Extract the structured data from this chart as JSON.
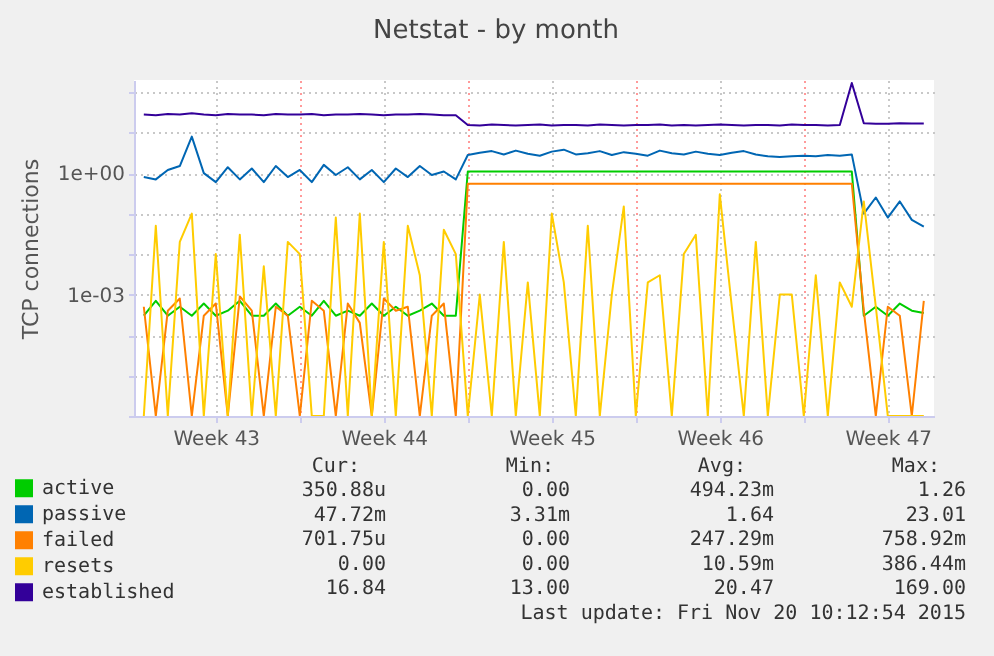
{
  "chart_data": {
    "type": "line",
    "title": "Netstat - by month",
    "ylabel": "TCP connections",
    "x": [
      "2015-10-18T12:00",
      "2015-10-19T00:00",
      "2015-10-19T12:00",
      "2015-10-20T00:00",
      "2015-10-20T12:00",
      "2015-10-21T00:00",
      "2015-10-21T12:00",
      "2015-10-22T00:00",
      "2015-10-22T12:00",
      "2015-10-23T00:00",
      "2015-10-23T12:00",
      "2015-10-24T00:00",
      "2015-10-24T12:00",
      "2015-10-25T00:00",
      "2015-10-25T12:00",
      "2015-10-26T00:00",
      "2015-10-26T12:00",
      "2015-10-27T00:00",
      "2015-10-27T12:00",
      "2015-10-28T00:00",
      "2015-10-28T12:00",
      "2015-10-29T00:00",
      "2015-10-29T12:00",
      "2015-10-30T00:00",
      "2015-10-30T12:00",
      "2015-10-31T00:00",
      "2015-10-31T12:00",
      "2015-11-01T00:00",
      "2015-11-01T12:00",
      "2015-11-02T00:00",
      "2015-11-02T12:00",
      "2015-11-03T00:00",
      "2015-11-03T12:00",
      "2015-11-04T00:00",
      "2015-11-04T12:00",
      "2015-11-05T00:00",
      "2015-11-05T12:00",
      "2015-11-06T00:00",
      "2015-11-06T12:00",
      "2015-11-07T00:00",
      "2015-11-07T12:00",
      "2015-11-08T00:00",
      "2015-11-08T12:00",
      "2015-11-09T00:00",
      "2015-11-09T12:00",
      "2015-11-10T00:00",
      "2015-11-10T12:00",
      "2015-11-11T00:00",
      "2015-11-11T12:00",
      "2015-11-12T00:00",
      "2015-11-12T12:00",
      "2015-11-13T00:00",
      "2015-11-13T12:00",
      "2015-11-14T00:00",
      "2015-11-14T12:00",
      "2015-11-15T00:00",
      "2015-11-15T12:00",
      "2015-11-16T00:00",
      "2015-11-16T12:00",
      "2015-11-17T00:00",
      "2015-11-17T12:00",
      "2015-11-18T00:00",
      "2015-11-18T12:00",
      "2015-11-19T00:00",
      "2015-11-19T12:00",
      "2015-11-20T00:00"
    ],
    "xlim": [
      "2015-10-18T02:12",
      "2015-11-20T10:12"
    ],
    "xticks": [
      {
        "value": "2015-10-21T12:00",
        "label": "Week 43"
      },
      {
        "value": "2015-10-25T00:00",
        "label": null
      },
      {
        "value": "2015-10-28T12:00",
        "label": "Week 44"
      },
      {
        "value": "2015-11-01T00:00",
        "label": null
      },
      {
        "value": "2015-11-04T12:00",
        "label": "Week 45"
      },
      {
        "value": "2015-11-08T00:00",
        "label": null
      },
      {
        "value": "2015-11-11T12:00",
        "label": "Week 46"
      },
      {
        "value": "2015-11-15T00:00",
        "label": null
      },
      {
        "value": "2015-11-18T12:00",
        "label": "Week 47"
      }
    ],
    "ylim": [
      1e-06,
      200
    ],
    "yticks": [
      {
        "value": 1e-06,
        "label": null
      },
      {
        "value": 1e-05,
        "label": null
      },
      {
        "value": 0.0001,
        "label": null
      },
      {
        "value": 0.001,
        "label": "1e-03"
      },
      {
        "value": 0.01,
        "label": null
      },
      {
        "value": 0.1,
        "label": null
      },
      {
        "value": 1,
        "label": "1e+00"
      },
      {
        "value": 10,
        "label": null
      },
      {
        "value": 100,
        "label": null
      }
    ],
    "log": "y",
    "grid": true,
    "legend": "bottom",
    "series": [
      {
        "name": "active",
        "color": "#00cc00",
        "values": [
          0.0003,
          0.0007,
          0.0003,
          0.0005,
          0.0003,
          0.0006,
          0.0003,
          0.0004,
          0.0007,
          0.0003,
          0.0003,
          0.0006,
          0.0003,
          0.0005,
          0.0003,
          0.0007,
          0.0003,
          0.0004,
          0.0003,
          0.0006,
          0.0003,
          0.0005,
          0.0003,
          0.0004,
          0.0006,
          0.0003,
          0.0003,
          1.1,
          1.1,
          1.1,
          1.1,
          1.1,
          1.1,
          1.1,
          1.1,
          1.1,
          1.1,
          1.1,
          1.1,
          1.1,
          1.1,
          1.1,
          1.1,
          1.1,
          1.1,
          1.1,
          1.1,
          1.1,
          1.1,
          1.1,
          1.1,
          1.1,
          1.1,
          1.1,
          1.1,
          1.1,
          1.1,
          1.1,
          1.1,
          1.1,
          0.0003,
          0.0005,
          0.0003,
          0.0006,
          0.0004,
          0.00035
        ]
      },
      {
        "name": "passive",
        "color": "#0066b3",
        "values": [
          0.8,
          0.7,
          1.2,
          1.5,
          8,
          1.0,
          0.6,
          1.4,
          0.7,
          1.3,
          0.6,
          1.5,
          0.8,
          1.2,
          0.6,
          1.6,
          0.9,
          1.4,
          0.7,
          1.2,
          0.6,
          1.3,
          0.8,
          1.5,
          0.9,
          1.1,
          0.7,
          2.8,
          3.2,
          3.5,
          2.9,
          3.6,
          3.0,
          2.7,
          3.4,
          3.8,
          2.9,
          3.1,
          3.5,
          2.8,
          3.3,
          3.0,
          2.7,
          3.6,
          3.1,
          2.9,
          3.4,
          3.0,
          2.8,
          3.2,
          3.5,
          2.9,
          2.6,
          2.5,
          2.6,
          2.7,
          2.6,
          2.8,
          2.7,
          2.9,
          0.1,
          0.25,
          0.08,
          0.2,
          0.07,
          0.048
        ]
      },
      {
        "name": "failed",
        "color": "#ff8000",
        "values": [
          0.0005,
          1e-06,
          0.0004,
          0.0008,
          1e-06,
          0.0003,
          0.0006,
          1e-06,
          0.0009,
          0.0004,
          1e-06,
          0.0005,
          0.0003,
          1e-06,
          0.0007,
          0.0004,
          1e-06,
          0.0006,
          0.0002,
          1e-06,
          0.0008,
          0.0004,
          0.0005,
          1e-06,
          0.0003,
          0.0006,
          1e-06,
          0.55,
          0.55,
          0.55,
          0.55,
          0.55,
          0.55,
          0.55,
          0.55,
          0.55,
          0.55,
          0.55,
          0.55,
          0.55,
          0.55,
          0.55,
          0.55,
          0.55,
          0.55,
          0.55,
          0.55,
          0.55,
          0.55,
          0.55,
          0.55,
          0.55,
          0.55,
          0.55,
          0.55,
          0.55,
          0.55,
          0.55,
          0.55,
          0.55,
          0.0004,
          1e-06,
          0.0005,
          0.0003,
          1e-06,
          0.0007
        ]
      },
      {
        "name": "resets",
        "color": "#ffcc00",
        "values": [
          1e-06,
          0.05,
          1e-06,
          0.02,
          0.1,
          1e-06,
          0.01,
          1e-06,
          0.03,
          1e-06,
          0.005,
          1e-06,
          0.02,
          0.01,
          1e-06,
          1e-06,
          0.08,
          1e-06,
          0.1,
          1e-06,
          0.02,
          1e-06,
          0.05,
          0.003,
          1e-06,
          0.04,
          0.01,
          1e-06,
          0.001,
          1e-06,
          0.02,
          1e-06,
          0.002,
          1e-06,
          0.1,
          0.002,
          1e-06,
          0.05,
          1e-06,
          0.001,
          0.15,
          1e-06,
          0.002,
          0.003,
          1e-06,
          0.01,
          0.03,
          1e-06,
          0.3,
          0.0005,
          1e-06,
          0.02,
          1e-06,
          0.001,
          0.001,
          1e-06,
          0.003,
          1e-06,
          0.002,
          0.0005,
          0.2,
          0.0005,
          1e-06,
          1e-06,
          1e-06,
          1e-06
        ]
      },
      {
        "name": "established",
        "color": "#330099",
        "values": [
          28,
          27,
          29,
          28,
          30,
          28,
          27,
          29,
          28,
          28,
          27,
          29,
          28,
          28,
          29,
          27,
          28,
          28,
          29,
          28,
          27,
          28,
          28,
          29,
          28,
          27,
          27,
          15.5,
          15,
          16,
          15.5,
          15,
          15.5,
          16,
          15,
          15.5,
          15.5,
          15,
          16,
          15.5,
          15,
          15.5,
          15.5,
          16,
          15,
          15.5,
          15,
          15.5,
          16,
          15.5,
          15,
          15.5,
          15.5,
          15,
          16,
          15.5,
          15.5,
          15,
          15.5,
          169,
          17,
          16.5,
          16.5,
          17,
          16.8,
          16.84
        ]
      }
    ],
    "annotations": [
      "Cur:",
      "Min:",
      "Avg:",
      "Max:",
      "350.88u",
      "0.00",
      "494.23m",
      "1.26",
      "47.72m",
      "3.31m",
      "1.64",
      "23.01",
      "701.75u",
      "0.00",
      "247.29m",
      "758.92m",
      "0.00",
      "0.00",
      "10.59m",
      "386.44m",
      "16.84",
      "13.00",
      "20.47",
      "169.00",
      "Last update: Fri Nov 20 10:12:54 2015"
    ]
  }
}
